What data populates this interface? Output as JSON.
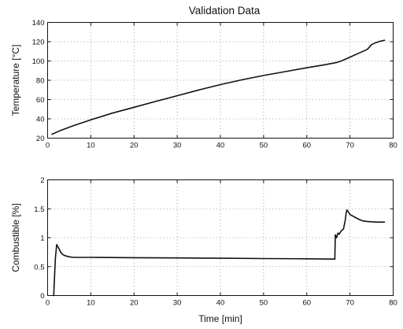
{
  "figure": {
    "title": "Validation Data"
  },
  "chart_data": [
    {
      "type": "line",
      "title": "Validation Data",
      "xlabel": "",
      "ylabel": "Temperature [°C]",
      "xlim": [
        0,
        80
      ],
      "ylim": [
        20,
        140
      ],
      "xticks": [
        0,
        10,
        20,
        30,
        40,
        50,
        60,
        70,
        80
      ],
      "yticks": [
        20,
        40,
        60,
        80,
        100,
        120,
        140
      ],
      "grid": true,
      "series": [
        {
          "color": "#111111",
          "x": [
            1,
            3,
            6,
            10,
            15,
            20,
            25,
            30,
            35,
            40,
            45,
            50,
            55,
            60,
            64,
            67,
            68,
            70,
            72,
            74,
            75,
            76,
            77,
            78
          ],
          "y": [
            24,
            28,
            33,
            39,
            46,
            52,
            58,
            64,
            70,
            75.5,
            80.5,
            85,
            89,
            93,
            96,
            98.5,
            100,
            104,
            108,
            112,
            117,
            119,
            120.5,
            121.5
          ]
        }
      ]
    },
    {
      "type": "line",
      "title": "",
      "xlabel": "Time [min]",
      "ylabel": "Combustible [%]",
      "xlim": [
        0,
        80
      ],
      "ylim": [
        0,
        2
      ],
      "xticks": [
        0,
        10,
        20,
        30,
        40,
        50,
        60,
        70,
        80
      ],
      "yticks": [
        0,
        0.5,
        1,
        1.5,
        2
      ],
      "ytick_labels": [
        "0",
        "0.5",
        "1",
        "1.5",
        "2"
      ],
      "grid": true,
      "series": [
        {
          "color": "#111111",
          "x": [
            1.4,
            1.8,
            2.1,
            2.5,
            3,
            3.5,
            4,
            5,
            6,
            10,
            20,
            30,
            40,
            50,
            60,
            66.5,
            66.6,
            66.9,
            67.2,
            67.5,
            68,
            68.5,
            68.9,
            69.1,
            69.3,
            69.6,
            70,
            71,
            72,
            73,
            74,
            76,
            78
          ],
          "y": [
            0,
            0.65,
            0.88,
            0.83,
            0.75,
            0.71,
            0.69,
            0.67,
            0.66,
            0.66,
            0.655,
            0.65,
            0.645,
            0.64,
            0.635,
            0.63,
            1.05,
            1.0,
            1.08,
            1.06,
            1.12,
            1.15,
            1.3,
            1.42,
            1.48,
            1.45,
            1.4,
            1.36,
            1.32,
            1.29,
            1.28,
            1.27,
            1.27
          ]
        }
      ]
    }
  ]
}
